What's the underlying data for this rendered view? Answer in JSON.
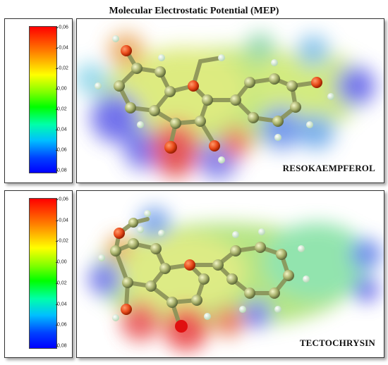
{
  "title": "Molecular Electrostatic Potential (MEP)",
  "colorbar_ticks": [
    "-0,06",
    "-0,04",
    "-0,02",
    "0,00",
    "0,02",
    "0,04",
    "0,06",
    "0,08"
  ],
  "colorbar_colors": [
    "#ff0000",
    "#ffff00",
    "#00ff00",
    "#0000ff"
  ],
  "molecules": [
    {
      "label": "RESOKAEMPFEROL"
    },
    {
      "label": "TECTOCHRYSIN"
    }
  ]
}
